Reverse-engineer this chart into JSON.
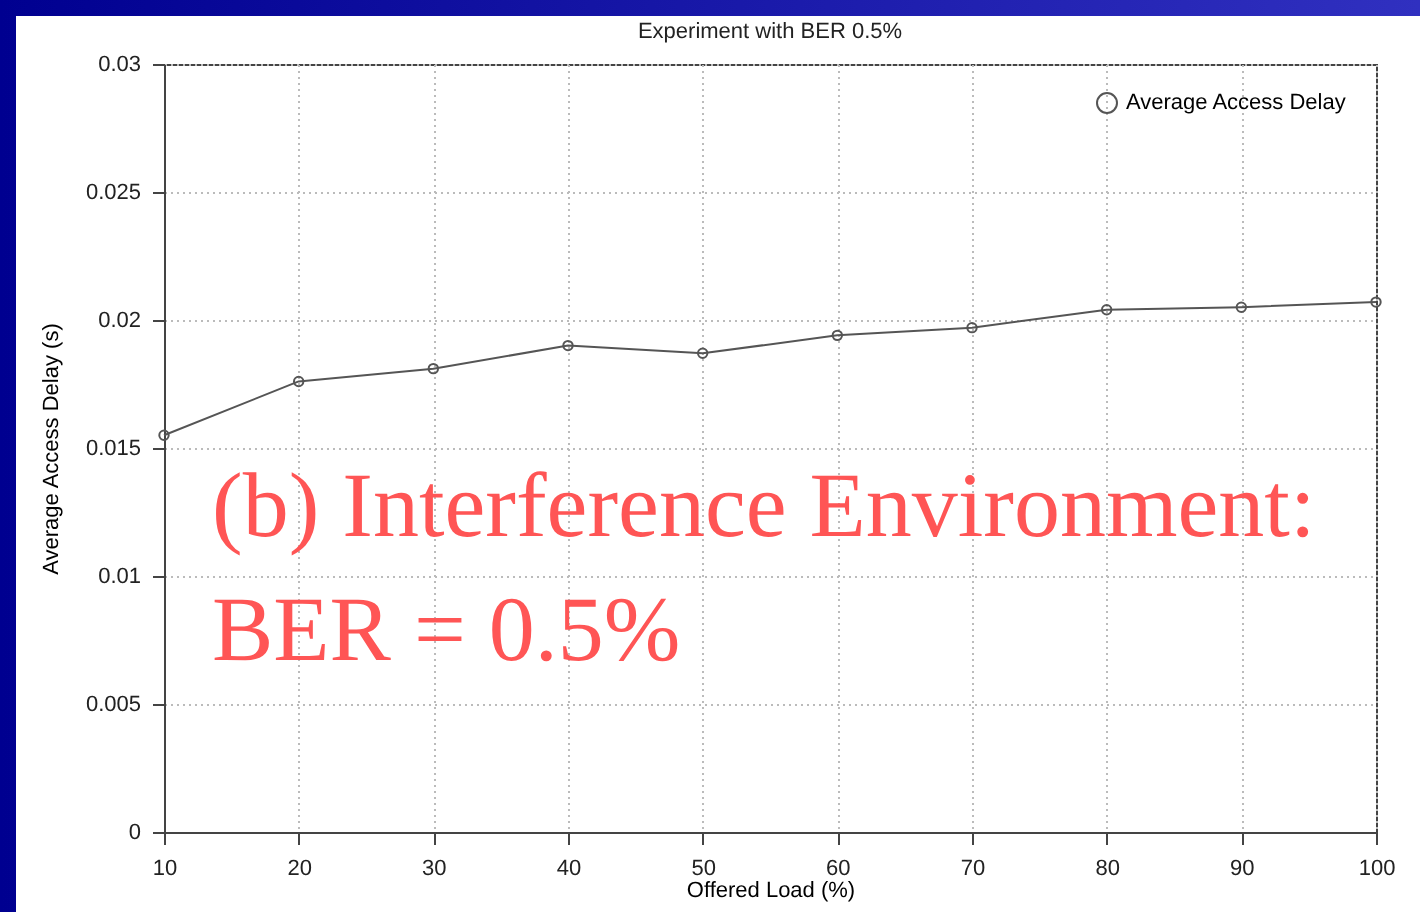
{
  "chart_data": {
    "type": "line",
    "title": "Experiment with BER 0.5%",
    "xlabel": "Offered Load (%)",
    "ylabel": "Average Access Delay (s)",
    "x": [
      10,
      20,
      30,
      40,
      50,
      60,
      70,
      80,
      90,
      100
    ],
    "series": [
      {
        "name": "Average Access Delay",
        "color": "#555555",
        "values": [
          0.0155,
          0.0176,
          0.0181,
          0.019,
          0.0187,
          0.0194,
          0.0197,
          0.0204,
          0.0205,
          0.0207
        ]
      }
    ],
    "xlim": [
      10,
      100
    ],
    "xticks": [
      10,
      20,
      30,
      40,
      50,
      60,
      70,
      80,
      90,
      100
    ],
    "ylim": [
      0,
      0.03
    ],
    "yticks": [
      0,
      0.005,
      0.01,
      0.015,
      0.02,
      0.025,
      0.03
    ],
    "grid": true,
    "legend": "top right",
    "marker": "circle",
    "line_style": "solid",
    "annotations": [
      "(b) Interference Environment: BER = 0.5%"
    ]
  }
}
